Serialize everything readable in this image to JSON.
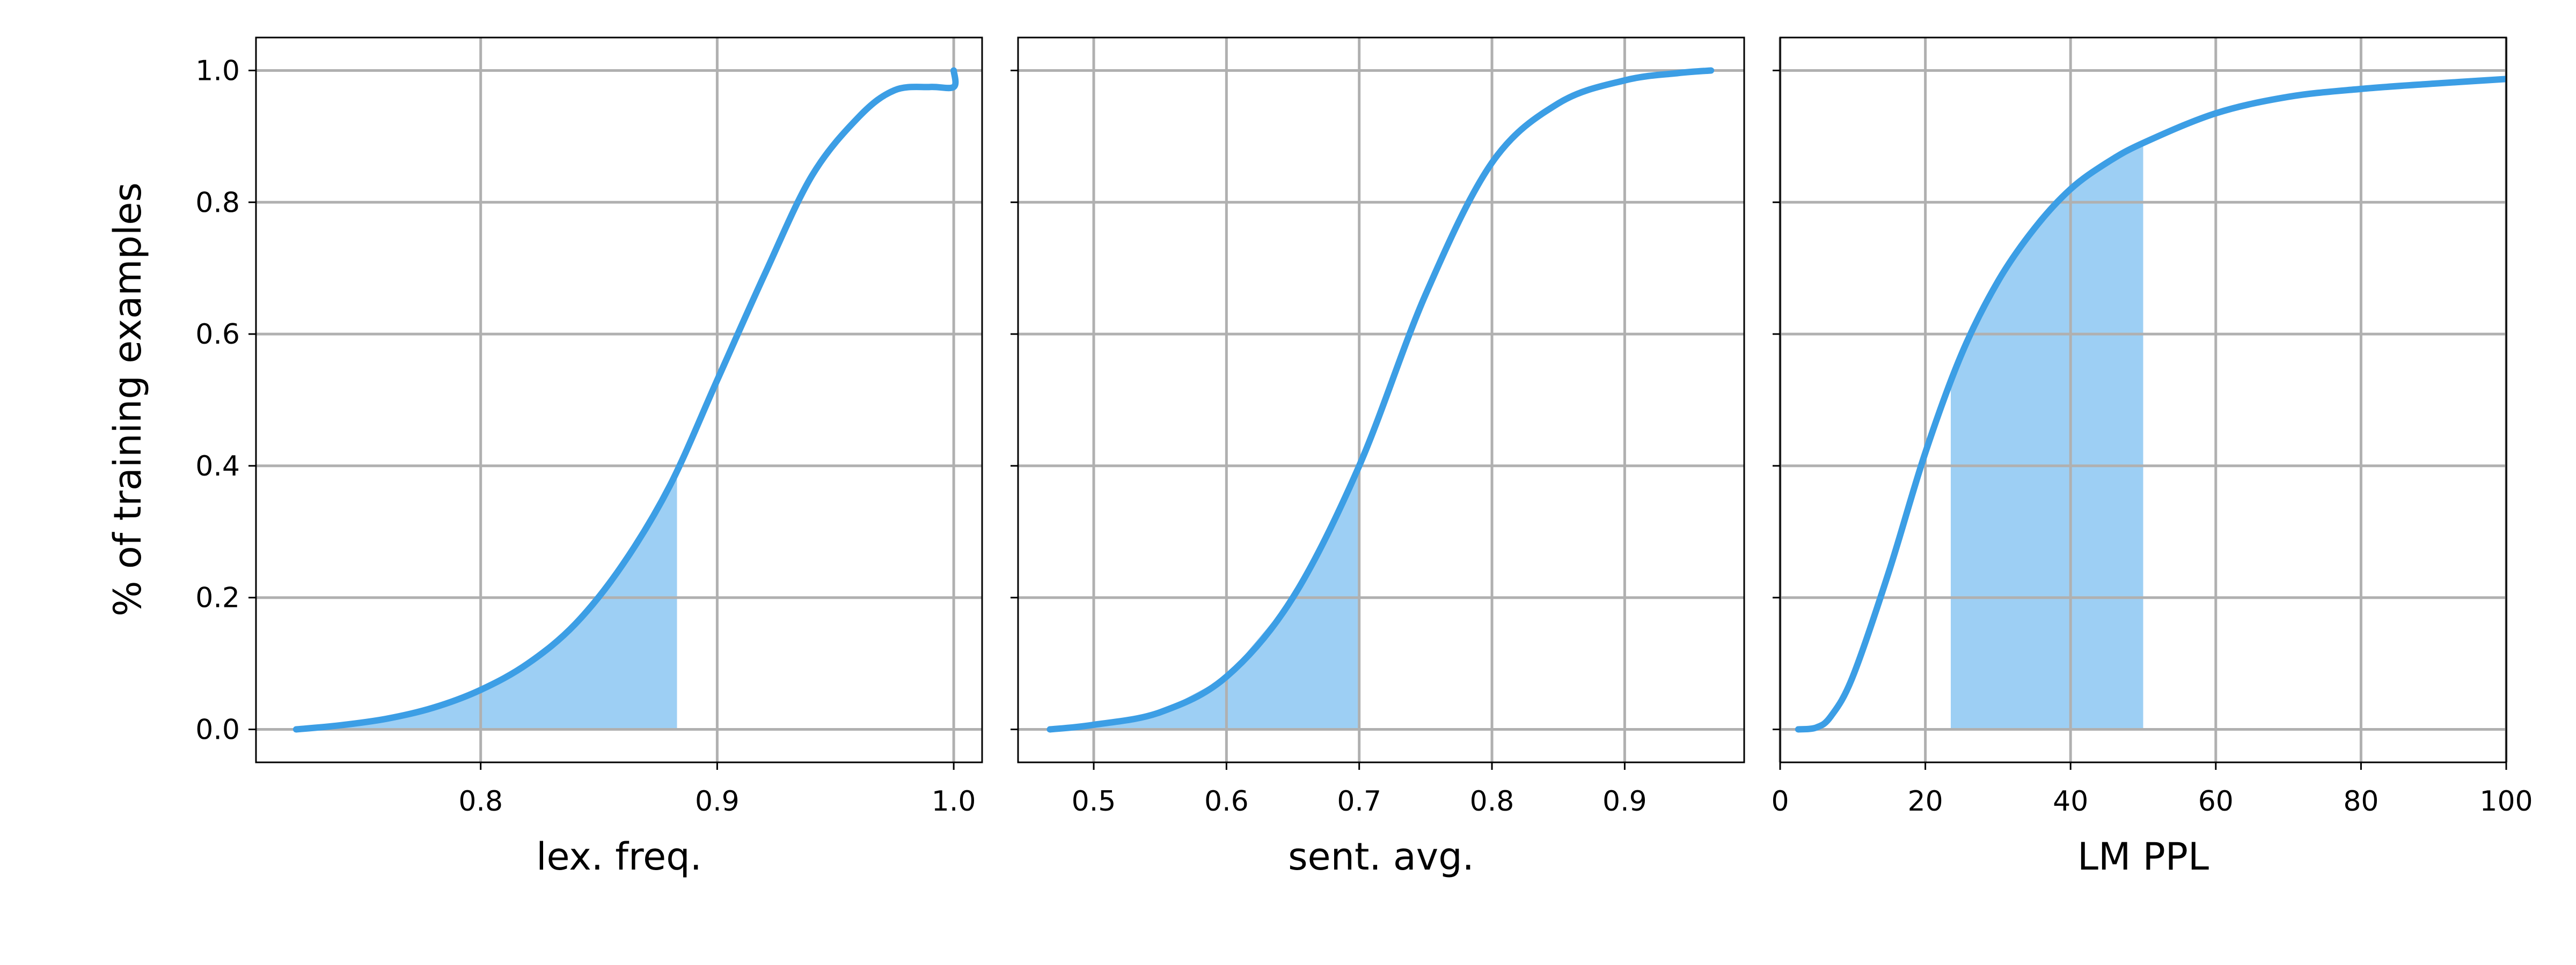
{
  "chart_data": [
    {
      "type": "line",
      "xlabel": "lex. freq.",
      "ylabel": "% of training examples",
      "xlim": [
        0.705,
        1.012
      ],
      "ylim": [
        -0.05,
        1.05
      ],
      "xticks": [
        0.8,
        0.9,
        1.0
      ],
      "xtick_labels": [
        "0.8",
        "0.9",
        "1.0"
      ],
      "yticks": [
        0.0,
        0.2,
        0.4,
        0.6,
        0.8,
        1.0
      ],
      "ytick_labels": [
        "0.0",
        "0.2",
        "0.4",
        "0.6",
        "0.8",
        "1.0"
      ],
      "show_yticklabels": true,
      "grid": true,
      "line_color": "#3c9ee5",
      "fill_color": "#9dcff4",
      "shaded_range": [
        0.705,
        0.883
      ],
      "x": [
        0.722,
        0.74,
        0.76,
        0.78,
        0.8,
        0.82,
        0.84,
        0.86,
        0.88,
        0.9,
        0.92,
        0.94,
        0.96,
        0.975,
        0.99,
        1.0,
        1.0
      ],
      "y": [
        0.0,
        0.006,
        0.016,
        0.033,
        0.06,
        0.1,
        0.16,
        0.25,
        0.37,
        0.53,
        0.69,
        0.84,
        0.93,
        0.97,
        0.975,
        0.975,
        1.0
      ]
    },
    {
      "type": "line",
      "xlabel": "sent. avg.",
      "ylabel": "",
      "xlim": [
        0.443,
        0.99
      ],
      "ylim": [
        -0.05,
        1.05
      ],
      "xticks": [
        0.5,
        0.6,
        0.7,
        0.8,
        0.9
      ],
      "xtick_labels": [
        "0.5",
        "0.6",
        "0.7",
        "0.8",
        "0.9"
      ],
      "yticks": [
        0.0,
        0.2,
        0.4,
        0.6,
        0.8,
        1.0
      ],
      "ytick_labels": [],
      "show_yticklabels": false,
      "grid": true,
      "line_color": "#3c9ee5",
      "fill_color": "#9dcff4",
      "shaded_range": [
        0.443,
        0.7
      ],
      "x": [
        0.467,
        0.5,
        0.55,
        0.6,
        0.65,
        0.7,
        0.75,
        0.8,
        0.85,
        0.9,
        0.94,
        0.965
      ],
      "y": [
        0.0,
        0.007,
        0.026,
        0.08,
        0.2,
        0.4,
        0.66,
        0.86,
        0.95,
        0.985,
        0.996,
        1.0
      ]
    },
    {
      "type": "line",
      "xlabel": "LM PPL",
      "ylabel": "",
      "xlim": [
        0,
        100
      ],
      "ylim": [
        -0.05,
        1.05
      ],
      "xticks": [
        0,
        20,
        40,
        60,
        80,
        100
      ],
      "xtick_labels": [
        "0",
        "20",
        "40",
        "60",
        "80",
        "100"
      ],
      "yticks": [
        0.0,
        0.2,
        0.4,
        0.6,
        0.8,
        1.0
      ],
      "ytick_labels": [],
      "show_yticklabels": false,
      "grid": true,
      "line_color": "#3c9ee5",
      "fill_color": "#9dcff4",
      "shaded_range": [
        23.5,
        50
      ],
      "x": [
        2.5,
        5,
        7,
        10,
        15,
        20,
        25,
        30,
        35,
        40,
        45,
        50,
        60,
        70,
        80,
        90,
        100
      ],
      "y": [
        0.0,
        0.003,
        0.02,
        0.08,
        0.24,
        0.42,
        0.57,
        0.68,
        0.76,
        0.82,
        0.86,
        0.89,
        0.935,
        0.96,
        0.972,
        0.98,
        0.987
      ]
    }
  ]
}
